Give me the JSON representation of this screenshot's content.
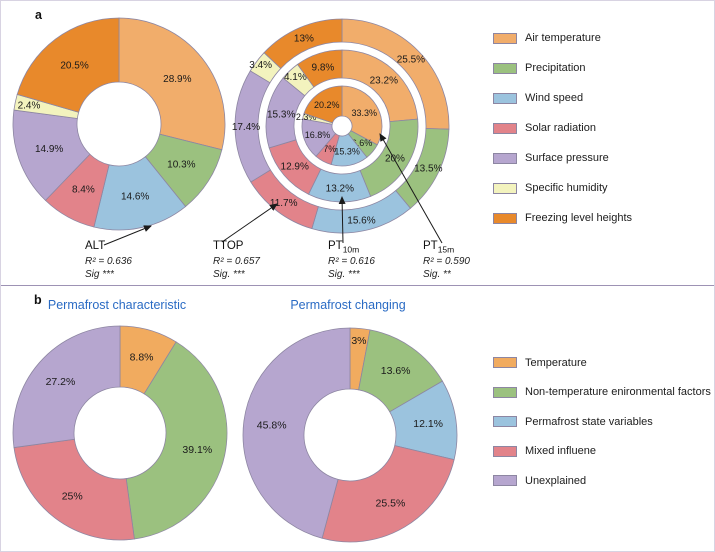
{
  "figure": {
    "panel_a_letter": "a",
    "panel_b_letter": "b",
    "titles": {
      "b_left": "Permafrost characteristic",
      "b_right": "Permafrost changing"
    },
    "legend_a": [
      {
        "label": "Air temperature",
        "color": "#F1AD6B"
      },
      {
        "label": "Precipitation",
        "color": "#9BC17F"
      },
      {
        "label": "Wind speed",
        "color": "#9BC3DE"
      },
      {
        "label": "Solar radiation",
        "color": "#E2838A"
      },
      {
        "label": "Surface pressure",
        "color": "#B6A6CF"
      },
      {
        "label": "Specific humidity",
        "color": "#F3F3BE"
      },
      {
        "label": "Freezing level heights",
        "color": "#E8892B"
      }
    ],
    "legend_b": [
      {
        "label": "Temperature",
        "color": "#F1AB5F"
      },
      {
        "label": "Non-temperature enironmental factors",
        "color": "#9BC17F"
      },
      {
        "label": "Permafrost state variables",
        "color": "#9BC3DE"
      },
      {
        "label": "Mixed influene",
        "color": "#E2838A"
      },
      {
        "label": "Unexplained",
        "color": "#B6A6CF"
      }
    ],
    "annotations": [
      {
        "name": "ALT",
        "sub": "",
        "r2": "R² = 0.636",
        "sig": "Sig ***"
      },
      {
        "name": "TTOP",
        "sub": "",
        "r2": "R² = 0.657",
        "sig": "Sig. ***"
      },
      {
        "name": "PT",
        "sub": "10m",
        "r2": "R² = 0.616",
        "sig": "Sig. ***"
      },
      {
        "name": "PT",
        "sub": "15m",
        "r2": "R² = 0.590",
        "sig": "Sig. **"
      }
    ]
  },
  "chart_data": [
    {
      "type": "donut",
      "title": "ALT",
      "categories": [
        "Air temperature",
        "Precipitation",
        "Wind speed",
        "Solar radiation",
        "Surface pressure",
        "Specific humidity",
        "Freezing level heights"
      ],
      "values": [
        28.9,
        10.3,
        14.6,
        8.4,
        14.9,
        2.4,
        20.5
      ],
      "labels": [
        "28.9%",
        "10.3%",
        "14.6%",
        "8.4%",
        "14.9%",
        "2.4%",
        "20.5%"
      ],
      "colors": [
        "#F1AD6B",
        "#9BC17F",
        "#9BC3DE",
        "#E2838A",
        "#B6A6CF",
        "#F3F3BE",
        "#E8892B"
      ],
      "stats": {
        "r2": 0.636,
        "sig": "***"
      }
    },
    {
      "type": "nested-donut",
      "categories": [
        "Air temperature",
        "Precipitation",
        "Wind speed",
        "Solar radiation",
        "Surface pressure",
        "Specific humidity",
        "Freezing level heights"
      ],
      "colors": [
        "#F1AD6B",
        "#9BC17F",
        "#9BC3DE",
        "#E2838A",
        "#B6A6CF",
        "#F3F3BE",
        "#E8892B"
      ],
      "rings": [
        {
          "name": "TTOP",
          "position": "outer",
          "values": [
            25.5,
            13.5,
            15.6,
            11.7,
            17.4,
            3.4,
            13.0
          ],
          "labels": [
            "25.5%",
            "13.5%",
            "15.6%",
            "11.7%",
            "17.4%",
            "3.4%",
            "13%"
          ],
          "stats": {
            "r2": 0.657,
            "sig": "***"
          }
        },
        {
          "name": "PT10m",
          "position": "middle",
          "values": [
            23.2,
            20.0,
            13.2,
            12.9,
            15.3,
            4.1,
            9.8
          ],
          "labels": [
            "23.2%",
            "20%",
            "13.2%",
            "12.9%",
            "15.3%",
            "4.1%",
            "9.8%"
          ],
          "stats": {
            "r2": 0.616,
            "sig": "***"
          }
        },
        {
          "name": "PT15m",
          "position": "inner",
          "values": [
            33.3,
            6.6,
            15.3,
            7.0,
            16.8,
            2.3,
            20.2
          ],
          "labels": [
            "33.3%",
            "6.6%",
            "15.3%",
            "7%",
            "16.8%",
            "2.3%",
            "20.2%"
          ],
          "stats": {
            "r2": 0.59,
            "sig": "**"
          }
        }
      ]
    },
    {
      "type": "donut",
      "title": "Permafrost characteristic",
      "categories": [
        "Temperature",
        "Non-temperature enironmental factors",
        "Mixed influene",
        "Unexplained"
      ],
      "values": [
        8.8,
        39.1,
        25.0,
        27.2
      ],
      "labels": [
        "8.8%",
        "39.1%",
        "25%",
        "27.2%"
      ],
      "colors": [
        "#F1AB5F",
        "#9BC17F",
        "#E2838A",
        "#B6A6CF"
      ]
    },
    {
      "type": "donut",
      "title": "Permafrost changing",
      "categories": [
        "Temperature",
        "Non-temperature enironmental factors",
        "Permafrost state variables",
        "Mixed influene",
        "Unexplained"
      ],
      "values": [
        3.0,
        13.6,
        12.1,
        25.5,
        45.8
      ],
      "labels": [
        "3%",
        "13.6%",
        "12.1%",
        "25.5%",
        "45.8%"
      ],
      "colors": [
        "#F1AB5F",
        "#9BC17F",
        "#9BC3DE",
        "#E2838A",
        "#B6A6CF"
      ]
    }
  ]
}
